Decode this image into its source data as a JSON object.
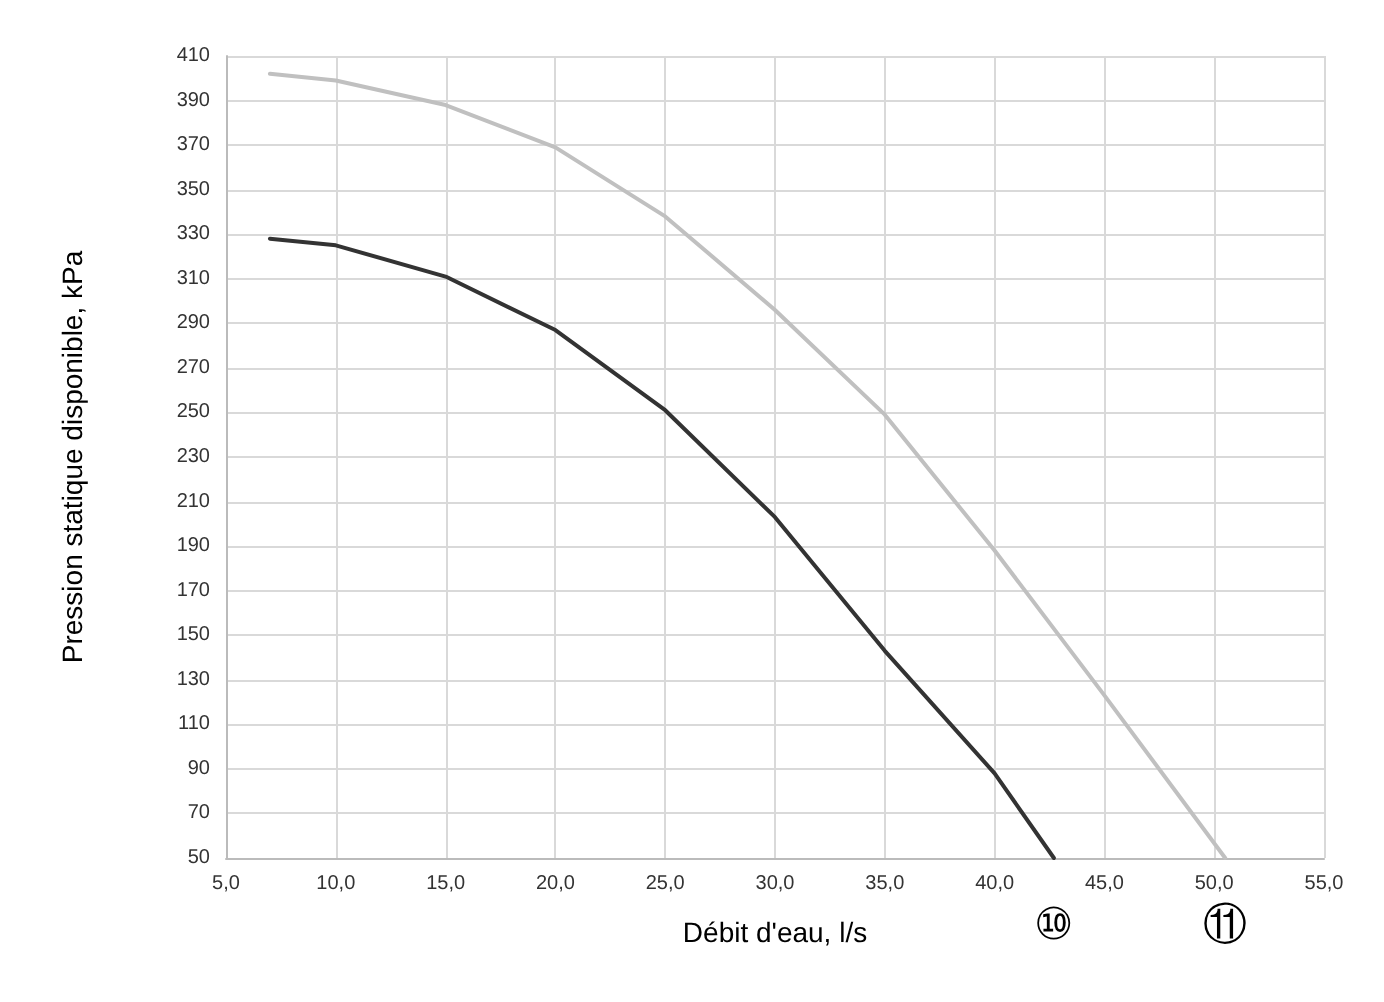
{
  "chart_data": {
    "type": "line",
    "xlabel": "Débit d'eau, l/s",
    "ylabel": "Pression statique disponible, kPa",
    "xlim": [
      5,
      55
    ],
    "xticks": [
      {
        "value": 5,
        "label": "5,0"
      },
      {
        "value": 10,
        "label": "10,0"
      },
      {
        "value": 15,
        "label": "15,0"
      },
      {
        "value": 20,
        "label": "20,0"
      },
      {
        "value": 25,
        "label": "25,0"
      },
      {
        "value": 30,
        "label": "30,0"
      },
      {
        "value": 35,
        "label": "35,0"
      },
      {
        "value": 40,
        "label": "40,0"
      },
      {
        "value": 45,
        "label": "45,0"
      },
      {
        "value": 50,
        "label": "50,0"
      },
      {
        "value": 55,
        "label": "55,0"
      }
    ],
    "ylim": [
      50,
      410
    ],
    "yticks": [
      50,
      70,
      90,
      110,
      130,
      150,
      170,
      190,
      210,
      230,
      250,
      270,
      290,
      310,
      330,
      350,
      370,
      390,
      410
    ],
    "grid": true,
    "marker": "none",
    "line_style": "solid",
    "series": [
      {
        "color": "#333333",
        "x": [
          7,
          10,
          15,
          20,
          25,
          30,
          35,
          40,
          42.7
        ],
        "values": [
          328,
          325,
          311,
          287,
          251,
          203,
          143,
          88,
          50
        ]
      },
      {
        "color": "#c0c0c0",
        "x": [
          7,
          10,
          15,
          20,
          25,
          30,
          35,
          40,
          45,
          50.5
        ],
        "values": [
          402,
          399,
          388,
          369,
          338,
          296,
          249,
          188,
          123,
          50
        ]
      }
    ],
    "annotations": [
      {
        "text": "⑩",
        "x": 42.7,
        "y": 50
      },
      {
        "text": "⑪",
        "x": 50.5,
        "y": 50
      }
    ]
  }
}
